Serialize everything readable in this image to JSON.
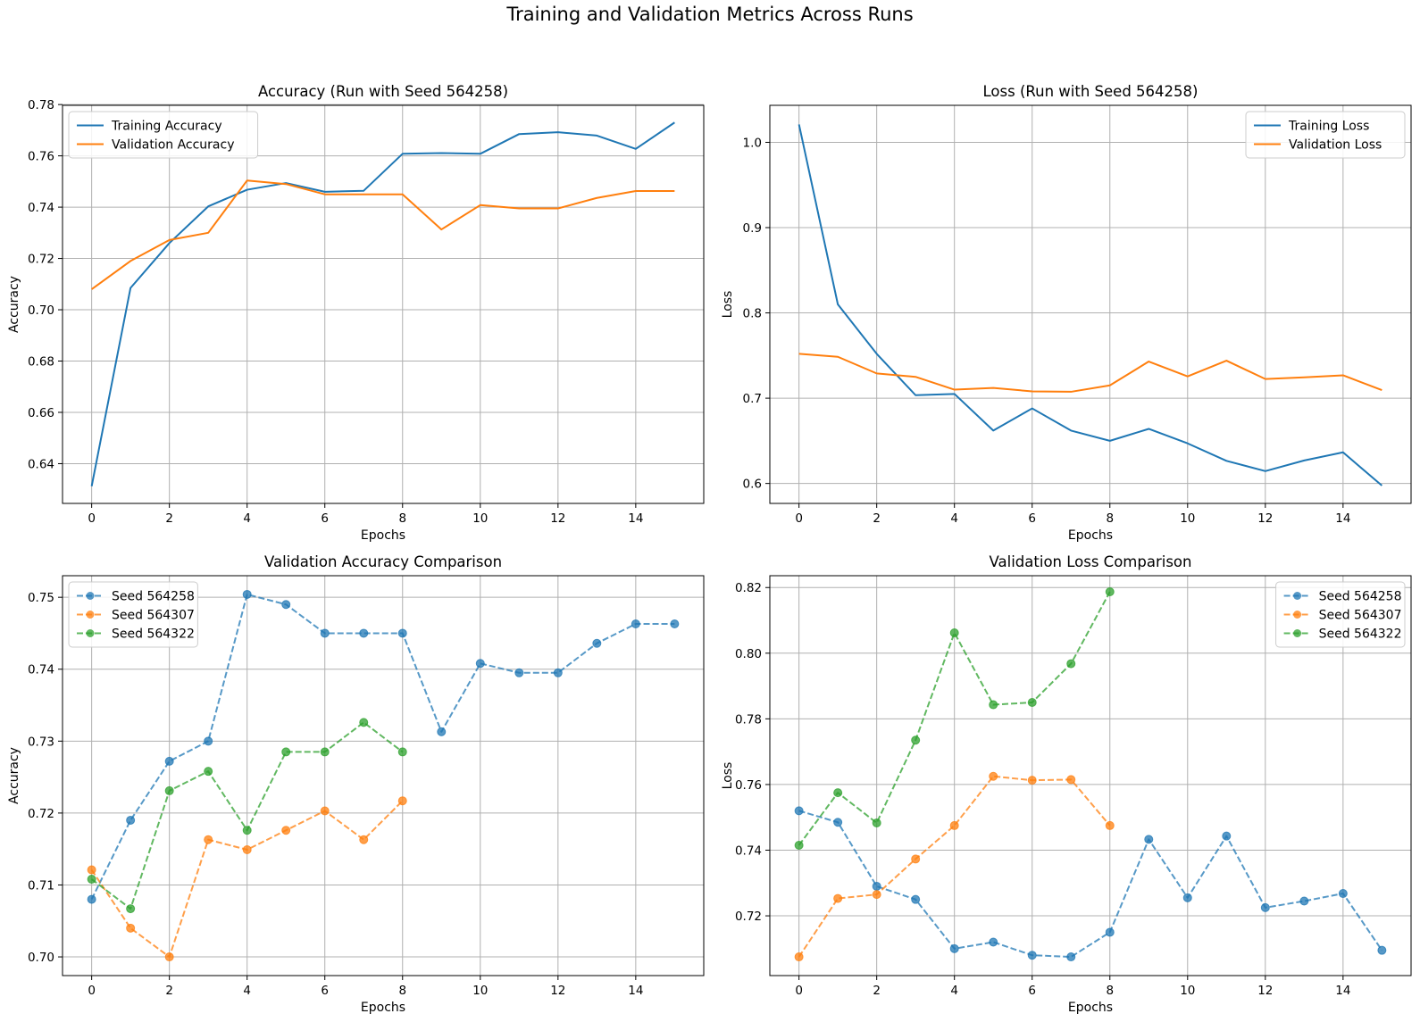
{
  "figure": {
    "title": "Training and Validation Metrics Across Runs"
  },
  "colors": {
    "blue": "#1f77b4",
    "orange": "#ff7f0e",
    "green": "#2ca02c",
    "grid": "#b0b0b0"
  },
  "chart_data": [
    {
      "type": "line",
      "title": "Accuracy (Run with Seed 564258)",
      "xlabel": "Epochs",
      "ylabel": "Accuracy",
      "xlim": [
        -0.75,
        15.75
      ],
      "ylim": [
        0.6245,
        0.7797
      ],
      "xticks": [
        0,
        2,
        4,
        6,
        8,
        10,
        12,
        14
      ],
      "yticks": [
        0.64,
        0.66,
        0.68,
        0.7,
        0.72,
        0.74,
        0.76,
        0.78
      ],
      "ytick_labels": [
        "0.64",
        "0.66",
        "0.68",
        "0.70",
        "0.72",
        "0.74",
        "0.76",
        "0.78"
      ],
      "grid": true,
      "legend": "upper-left",
      "series": [
        {
          "name": "Training Accuracy",
          "color": "#1f77b4",
          "style": "solid",
          "x": [
            0,
            1,
            2,
            3,
            4,
            5,
            6,
            7,
            8,
            9,
            10,
            11,
            12,
            13,
            14,
            15
          ],
          "y": [
            0.6312,
            0.7085,
            0.726,
            0.7403,
            0.7468,
            0.7494,
            0.746,
            0.7464,
            0.7608,
            0.7611,
            0.7608,
            0.7685,
            0.7692,
            0.7679,
            0.7627,
            0.773
          ]
        },
        {
          "name": "Validation Accuracy",
          "color": "#ff7f0e",
          "style": "solid",
          "x": [
            0,
            1,
            2,
            3,
            4,
            5,
            6,
            7,
            8,
            9,
            10,
            11,
            12,
            13,
            14,
            15
          ],
          "y": [
            0.708,
            0.719,
            0.7272,
            0.73,
            0.7504,
            0.749,
            0.745,
            0.745,
            0.745,
            0.7313,
            0.7408,
            0.7395,
            0.7395,
            0.7436,
            0.7463,
            0.7463
          ]
        }
      ]
    },
    {
      "type": "line",
      "title": "Loss (Run with Seed 564258)",
      "xlabel": "Epochs",
      "ylabel": "Loss",
      "xlim": [
        -0.75,
        15.75
      ],
      "ylim": [
        0.5766,
        1.0434
      ],
      "xticks": [
        0,
        2,
        4,
        6,
        8,
        10,
        12,
        14
      ],
      "yticks": [
        0.6,
        0.7,
        0.8,
        0.9,
        1.0
      ],
      "ytick_labels": [
        "0.6",
        "0.7",
        "0.8",
        "0.9",
        "1.0"
      ],
      "grid": true,
      "legend": "upper-right",
      "series": [
        {
          "name": "Training Loss",
          "color": "#1f77b4",
          "style": "solid",
          "x": [
            0,
            1,
            2,
            3,
            4,
            5,
            6,
            7,
            8,
            9,
            10,
            11,
            12,
            13,
            14,
            15
          ],
          "y": [
            1.021,
            0.81,
            0.752,
            0.7035,
            0.705,
            0.662,
            0.688,
            0.662,
            0.65,
            0.664,
            0.647,
            0.6265,
            0.6145,
            0.627,
            0.6365,
            0.5975
          ]
        },
        {
          "name": "Validation Loss",
          "color": "#ff7f0e",
          "style": "solid",
          "x": [
            0,
            1,
            2,
            3,
            4,
            5,
            6,
            7,
            8,
            9,
            10,
            11,
            12,
            13,
            14,
            15
          ],
          "y": [
            0.752,
            0.7485,
            0.729,
            0.725,
            0.71,
            0.712,
            0.708,
            0.7075,
            0.715,
            0.743,
            0.7255,
            0.744,
            0.7225,
            0.7245,
            0.7268,
            0.7095
          ]
        }
      ]
    },
    {
      "type": "line",
      "title": "Validation Accuracy Comparison",
      "xlabel": "Epochs",
      "ylabel": "Accuracy",
      "xlim": [
        -0.75,
        15.75
      ],
      "ylim": [
        0.6974,
        0.753
      ],
      "xticks": [
        0,
        2,
        4,
        6,
        8,
        10,
        12,
        14
      ],
      "yticks": [
        0.7,
        0.71,
        0.72,
        0.73,
        0.74,
        0.75
      ],
      "ytick_labels": [
        "0.70",
        "0.71",
        "0.72",
        "0.73",
        "0.74",
        "0.75"
      ],
      "grid": true,
      "legend": "upper-left",
      "series": [
        {
          "name": "Seed 564258",
          "color": "#1f77b4",
          "style": "dashed-markers",
          "x": [
            0,
            1,
            2,
            3,
            4,
            5,
            6,
            7,
            8,
            9,
            10,
            11,
            12,
            13,
            14,
            15
          ],
          "y": [
            0.708,
            0.719,
            0.7272,
            0.73,
            0.7504,
            0.749,
            0.745,
            0.745,
            0.745,
            0.7313,
            0.7408,
            0.7395,
            0.7395,
            0.7436,
            0.7463,
            0.7463
          ]
        },
        {
          "name": "Seed 564307",
          "color": "#ff7f0e",
          "style": "dashed-markers",
          "x": [
            0,
            1,
            2,
            3,
            4,
            5,
            6,
            7,
            8
          ],
          "y": [
            0.7121,
            0.704,
            0.7,
            0.7163,
            0.7149,
            0.7176,
            0.7203,
            0.7163,
            0.7217
          ]
        },
        {
          "name": "Seed 564322",
          "color": "#2ca02c",
          "style": "dashed-markers",
          "x": [
            0,
            1,
            2,
            3,
            4,
            5,
            6,
            7,
            8
          ],
          "y": [
            0.7108,
            0.7067,
            0.7231,
            0.7258,
            0.7176,
            0.7285,
            0.7285,
            0.7326,
            0.7285
          ]
        }
      ]
    },
    {
      "type": "line",
      "title": "Validation Loss Comparison",
      "xlabel": "Epochs",
      "ylabel": "Loss",
      "xlim": [
        -0.75,
        15.75
      ],
      "ylim": [
        0.7018,
        0.8236
      ],
      "xticks": [
        0,
        2,
        4,
        6,
        8,
        10,
        12,
        14
      ],
      "yticks": [
        0.72,
        0.74,
        0.76,
        0.78,
        0.8,
        0.82
      ],
      "ytick_labels": [
        "0.72",
        "0.74",
        "0.76",
        "0.78",
        "0.80",
        "0.82"
      ],
      "grid": true,
      "legend": "upper-right",
      "series": [
        {
          "name": "Seed 564258",
          "color": "#1f77b4",
          "style": "dashed-markers",
          "x": [
            0,
            1,
            2,
            3,
            4,
            5,
            6,
            7,
            8,
            9,
            10,
            11,
            12,
            13,
            14,
            15
          ],
          "y": [
            0.752,
            0.7485,
            0.729,
            0.725,
            0.71,
            0.712,
            0.708,
            0.7075,
            0.715,
            0.7433,
            0.7255,
            0.7443,
            0.7225,
            0.7245,
            0.7268,
            0.7095
          ]
        },
        {
          "name": "Seed 564307",
          "color": "#ff7f0e",
          "style": "dashed-markers",
          "x": [
            0,
            1,
            2,
            3,
            4,
            5,
            6,
            7,
            8
          ],
          "y": [
            0.7075,
            0.7253,
            0.7265,
            0.7373,
            0.7475,
            0.7625,
            0.7613,
            0.7615,
            0.7475
          ]
        },
        {
          "name": "Seed 564322",
          "color": "#2ca02c",
          "style": "dashed-markers",
          "x": [
            0,
            1,
            2,
            3,
            4,
            5,
            6,
            7,
            8
          ],
          "y": [
            0.7415,
            0.7575,
            0.7483,
            0.7735,
            0.8062,
            0.7843,
            0.785,
            0.7968,
            0.8187
          ]
        }
      ]
    }
  ]
}
